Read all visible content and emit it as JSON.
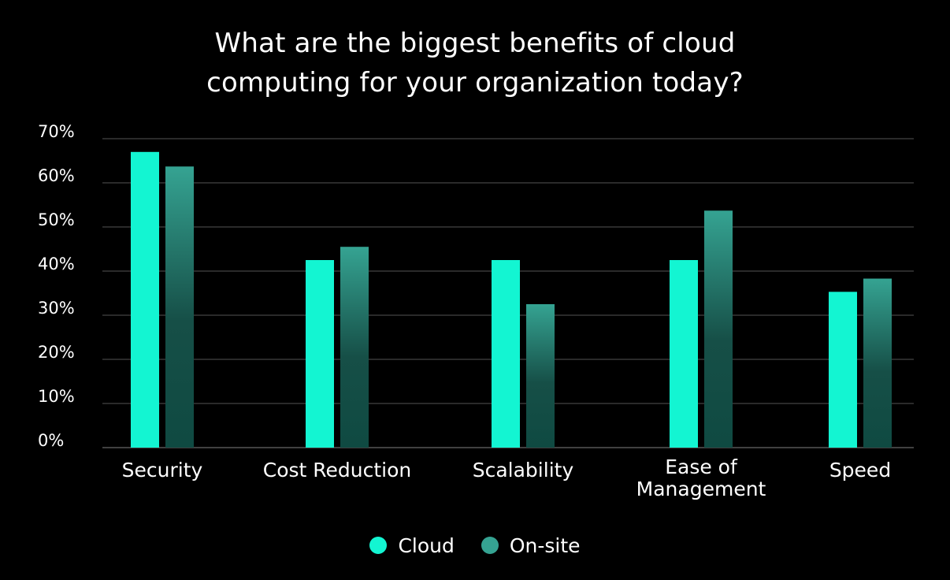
{
  "chart_data": {
    "type": "bar",
    "title_lines": [
      "What are the biggest benefits of cloud",
      "computing for your organization today?"
    ],
    "categories": [
      [
        "Security"
      ],
      [
        "Cost Reduction"
      ],
      [
        "Scalability"
      ],
      [
        "Ease of",
        "Management"
      ],
      [
        "Speed"
      ]
    ],
    "series": [
      {
        "name": "Cloud",
        "values": [
          67,
          42.5,
          42.5,
          42.5,
          35.3
        ],
        "color": "#13F5D2"
      },
      {
        "name": "On-site",
        "values": [
          63.7,
          45.5,
          32.5,
          53.7,
          38.3
        ],
        "color_top": "#35A392",
        "color_bottom": "#0F4A42"
      }
    ],
    "yticks": [
      "0%",
      "10%",
      "20%",
      "30%",
      "40%",
      "50%",
      "60%",
      "70%"
    ],
    "ylim": [
      0,
      70
    ],
    "grid": true,
    "legend_position": "bottom-center",
    "background": "#000000",
    "grid_color": "#555555"
  }
}
